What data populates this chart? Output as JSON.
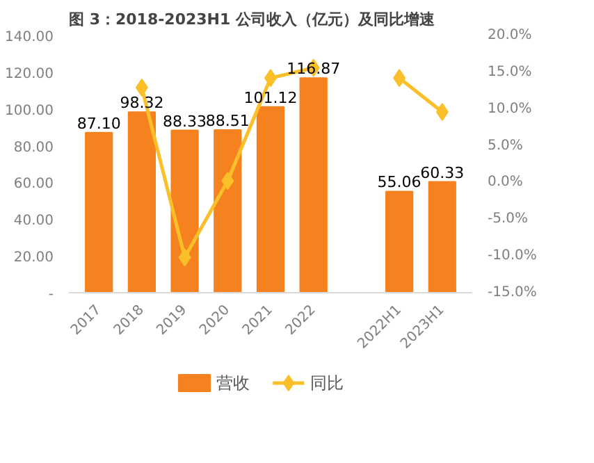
{
  "chart_data": {
    "type": "bar",
    "title": "图 3：2018-2023H1 公司收入（亿元）及同比增速",
    "categories": [
      "2017",
      "2018",
      "2019",
      "2020",
      "2021",
      "2022",
      null,
      "2022H1",
      "2023H1"
    ],
    "series": [
      {
        "name": "营收",
        "color": "#f5821f",
        "values": [
          87.1,
          98.32,
          88.33,
          88.51,
          101.12,
          116.87,
          null,
          55.06,
          60.33
        ],
        "value_labels": [
          "87.10",
          "98.32",
          "88.33",
          "88.51",
          "101.12",
          "116.87",
          null,
          "55.06",
          "60.33"
        ]
      },
      {
        "name": "同比",
        "type": "line",
        "axis": "y2",
        "color": "#fbbf2a",
        "values": [
          null,
          12.9,
          -10.2,
          0.2,
          14.2,
          15.6,
          null,
          14.2,
          9.6
        ]
      }
    ],
    "ylim": [
      0,
      140
    ],
    "yticks": [
      {
        "value": 0,
        "label": "-"
      },
      {
        "value": 20,
        "label": "20.00"
      },
      {
        "value": 40,
        "label": "40.00"
      },
      {
        "value": 60,
        "label": "60.00"
      },
      {
        "value": 80,
        "label": "80.00"
      },
      {
        "value": 100,
        "label": "100.00"
      },
      {
        "value": 120,
        "label": "120.00"
      },
      {
        "value": 140,
        "label": "140.00"
      }
    ],
    "y2lim": [
      -15,
      20
    ],
    "y2ticks": [
      {
        "value": -15,
        "label": "-15.0%"
      },
      {
        "value": -10,
        "label": "-10.0%"
      },
      {
        "value": -5,
        "label": "-5.0%"
      },
      {
        "value": 0,
        "label": "0.0%"
      },
      {
        "value": 5,
        "label": "5.0%"
      },
      {
        "value": 10,
        "label": "10.0%"
      },
      {
        "value": 15,
        "label": "15.0%"
      },
      {
        "value": 20,
        "label": "20.0%"
      }
    ],
    "grid": false,
    "legend": "bottom",
    "marker": "diamond",
    "line_style": "solid"
  }
}
